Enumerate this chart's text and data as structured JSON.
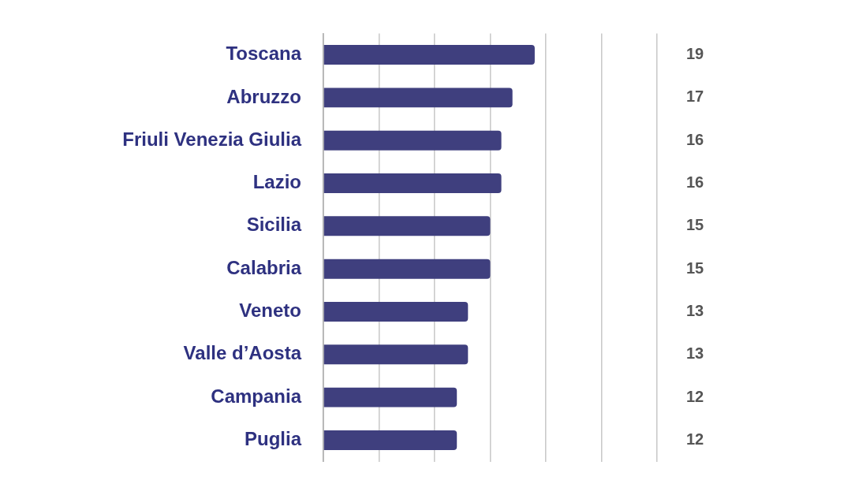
{
  "chart_data": {
    "type": "bar",
    "orientation": "horizontal",
    "categories": [
      "Toscana",
      "Abruzzo",
      "Friuli Venezia Giulia",
      "Lazio",
      "Sicilia",
      "Calabria",
      "Veneto",
      "Valle d’Aosta",
      "Campania",
      "Puglia"
    ],
    "values": [
      19,
      17,
      16,
      16,
      15,
      15,
      13,
      13,
      12,
      12
    ],
    "color": "#3f3f7e",
    "xlim": [
      0,
      30
    ],
    "xticks": [
      {
        "value": 0,
        "label": null
      },
      {
        "value": 5,
        "label": null
      },
      {
        "value": 10,
        "label": null
      },
      {
        "value": 15,
        "label": null
      },
      {
        "value": 20,
        "label": null
      },
      {
        "value": 25,
        "label": null
      },
      {
        "value": 30,
        "label": null
      }
    ],
    "grid": "x",
    "tick_labels": "y",
    "data_labels": true
  }
}
